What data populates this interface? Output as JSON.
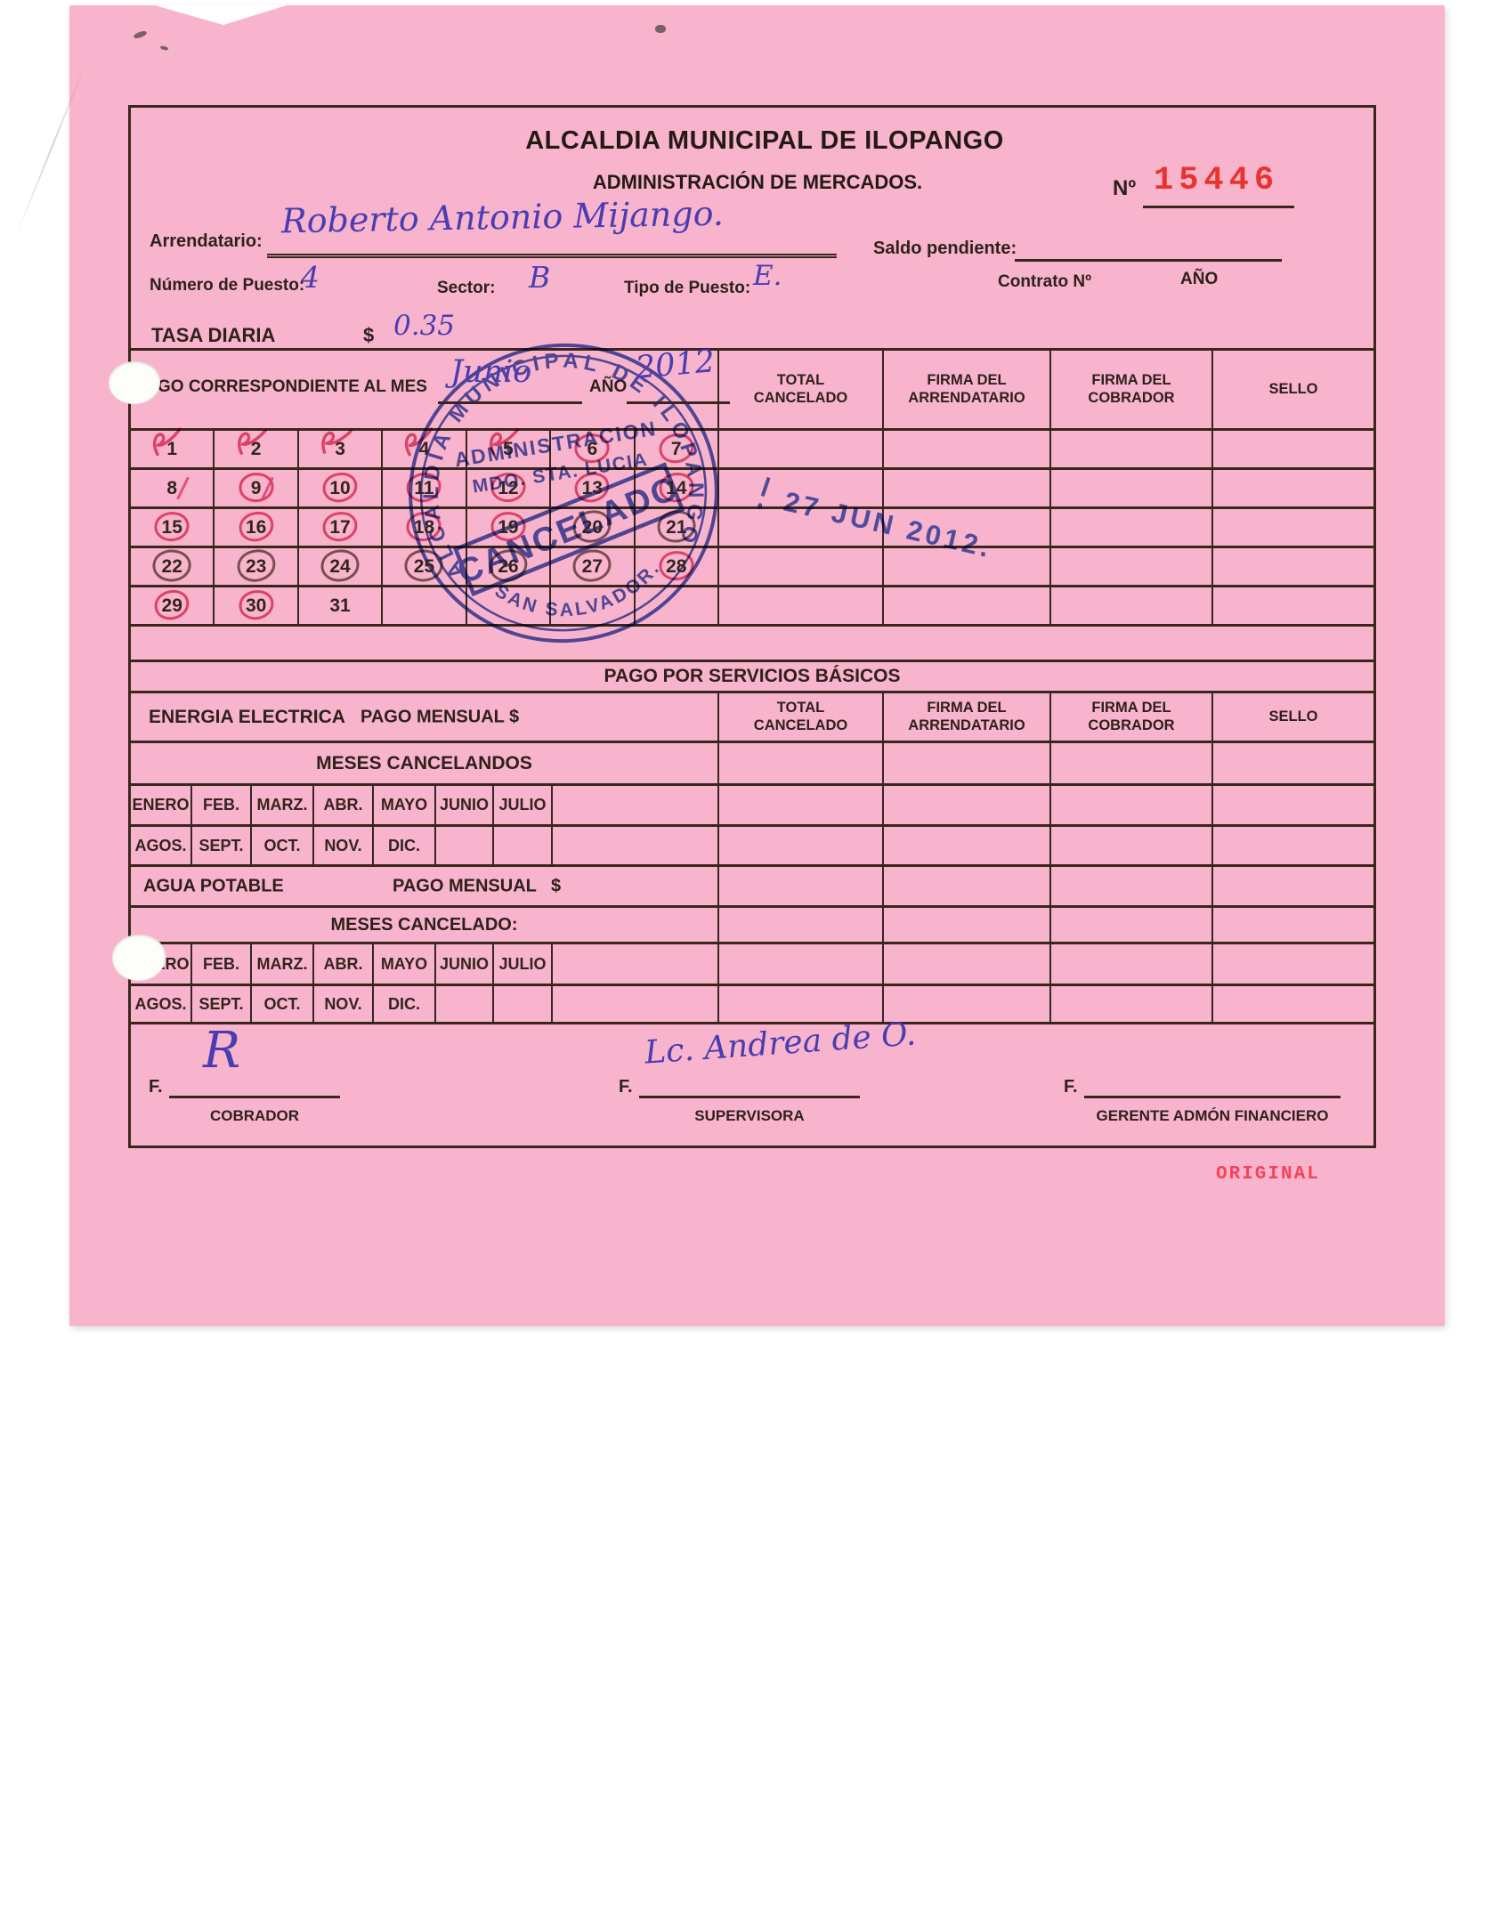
{
  "document": {
    "title": "ALCALDIA MUNICIPAL DE ILOPANGO",
    "subtitle": "ADMINISTRACIÓN DE MERCADOS.",
    "number_label": "Nº",
    "number": "15446",
    "copy_type": "ORIGINAL"
  },
  "fields": {
    "arrendatario_label": "Arrendatario:",
    "arrendatario_value": "Roberto Antonio Mijango.",
    "saldo_label": "Saldo pendiente:",
    "numero_puesto_label": "Número de Puesto:",
    "numero_puesto_value": "4",
    "sector_label": "Sector:",
    "sector_value": "B",
    "tipo_puesto_label": "Tipo de Puesto:",
    "tipo_puesto_value": "E.",
    "contrato_label": "Contrato Nº",
    "ano_label": "AÑO",
    "tasa_label": "TASA DIARIA",
    "tasa_currency": "$",
    "tasa_value": "0.35",
    "pago_mes_label": "PAGO CORRESPONDIENTE AL MES",
    "pago_mes_value": "Junio",
    "pago_ano_label": "AÑO",
    "pago_ano_value": "2012"
  },
  "table": {
    "headers": [
      {
        "l1": "TOTAL",
        "l2": "CANCELADO"
      },
      {
        "l1": "FIRMA DEL",
        "l2": "ARRENDATARIO"
      },
      {
        "l1": "FIRMA DEL",
        "l2": "COBRADOR"
      },
      {
        "l1": "SELLO",
        "l2": ""
      }
    ]
  },
  "calendar": {
    "rows": [
      [
        {
          "d": "1",
          "m": "check"
        },
        {
          "d": "2",
          "m": "check"
        },
        {
          "d": "3",
          "m": "check"
        },
        {
          "d": "4",
          "m": "check"
        },
        {
          "d": "5",
          "m": "check"
        },
        {
          "d": "6",
          "m": "circle-red"
        },
        {
          "d": "7",
          "m": "circle-red"
        }
      ],
      [
        {
          "d": "8",
          "m": "slash"
        },
        {
          "d": "9",
          "m": "scribble"
        },
        {
          "d": "10",
          "m": "circle-red"
        },
        {
          "d": "11",
          "m": "circle-red"
        },
        {
          "d": "12",
          "m": "circle-red"
        },
        {
          "d": "13",
          "m": "circle-red"
        },
        {
          "d": "14",
          "m": "circle-red"
        }
      ],
      [
        {
          "d": "15",
          "m": "circle-red"
        },
        {
          "d": "16",
          "m": "circle-red"
        },
        {
          "d": "17",
          "m": "circle-red"
        },
        {
          "d": "18",
          "m": "circle-red"
        },
        {
          "d": "19",
          "m": "circle-red"
        },
        {
          "d": "20",
          "m": "circle-dark"
        },
        {
          "d": "21",
          "m": "circle-dark"
        }
      ],
      [
        {
          "d": "22",
          "m": "circle-dark"
        },
        {
          "d": "23",
          "m": "circle-dark"
        },
        {
          "d": "24",
          "m": "circle-dark"
        },
        {
          "d": "25",
          "m": "circle-dark"
        },
        {
          "d": "26",
          "m": "circle-dark"
        },
        {
          "d": "27",
          "m": "circle-dark"
        },
        {
          "d": "28",
          "m": "circle-red"
        }
      ],
      [
        {
          "d": "29",
          "m": "circle-red"
        },
        {
          "d": "30",
          "m": "circle-red"
        },
        {
          "d": "31",
          "m": "none"
        },
        {
          "d": "",
          "m": "none"
        },
        {
          "d": "",
          "m": "none"
        },
        {
          "d": "",
          "m": "none"
        },
        {
          "d": "",
          "m": "none"
        }
      ]
    ]
  },
  "servicios": {
    "section_title": "PAGO POR SERVICIOS BÁSICOS",
    "energia_label": "ENERGIA ELECTRICA",
    "energia_pago_label": "PAGO MENSUAL $",
    "meses_cancelandos_label": "MESES CANCELANDOS",
    "months_row1": [
      "ENERO",
      "FEB.",
      "MARZ.",
      "ABR.",
      "MAYO",
      "JUNIO",
      "JULIO",
      ""
    ],
    "months_row2": [
      "AGOS.",
      "SEPT.",
      "OCT.",
      "NOV.",
      "DIC.",
      "",
      "",
      ""
    ],
    "agua_label": "AGUA POTABLE",
    "agua_pago_label": "PAGO MENSUAL",
    "agua_currency": "$",
    "meses_cancelado_label": "MESES CANCELADO:"
  },
  "stamps": {
    "round": {
      "arc_top": "ALCALDIA MUNICIPAL DE ILOPANGO",
      "line1": "ADMINISTRACION",
      "line2": "MDO. STA. LUCIA",
      "cancel": "CANCELADO",
      "arc_bottom": "SAN SALVADOR."
    },
    "date": "27 JUN 2012."
  },
  "signatures": {
    "f_label": "F.",
    "cobrador": {
      "label": "COBRADOR",
      "signature": "R"
    },
    "supervisora": {
      "label": "SUPERVISORA",
      "signature": "Lc. Andrea de O."
    },
    "gerente": {
      "label": "GERENTE ADMÓN FINANCIERO",
      "signature": ""
    }
  },
  "colors": {
    "paper": "#f8b4cc",
    "ink": "#38261f",
    "handwriting": "#4a3db2",
    "stamp_blue": "#2c3ea6",
    "stamp_number_red": "#e8332e",
    "mark_red": "#de4069",
    "original_red": "#f4435a"
  }
}
